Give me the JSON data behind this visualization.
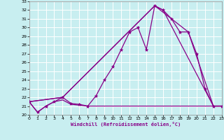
{
  "background_color": "#c8eef0",
  "line_color": "#880088",
  "grid_color": "#ffffff",
  "xlim": [
    0,
    23
  ],
  "ylim": [
    20,
    33
  ],
  "xticks": [
    0,
    1,
    2,
    3,
    4,
    5,
    6,
    7,
    8,
    9,
    10,
    11,
    12,
    13,
    14,
    15,
    16,
    17,
    18,
    19,
    20,
    21,
    22,
    23
  ],
  "yticks": [
    20,
    21,
    22,
    23,
    24,
    25,
    26,
    27,
    28,
    29,
    30,
    31,
    32,
    33
  ],
  "xlabel": "Windchill (Refroidissement éolien,°C)",
  "line1_x": [
    0,
    1,
    2,
    3,
    4,
    5,
    6,
    7,
    8,
    9,
    10,
    11,
    12,
    13,
    14,
    15,
    16,
    17,
    18,
    19,
    20,
    21,
    22,
    23
  ],
  "line1_y": [
    21.5,
    20.3,
    21.0,
    21.5,
    21.7,
    21.2,
    21.1,
    21.0,
    21.0,
    21.0,
    21.0,
    21.0,
    21.0,
    21.0,
    21.0,
    21.0,
    21.0,
    21.0,
    21.0,
    21.0,
    21.0,
    21.0,
    21.0,
    21.0
  ],
  "line2_x": [
    0,
    1,
    2,
    3,
    4,
    5,
    6,
    7,
    8,
    9,
    10,
    11,
    12,
    13,
    14,
    15,
    16,
    17,
    18,
    19,
    20,
    21,
    22,
    23
  ],
  "line2_y": [
    21.5,
    20.3,
    21.0,
    21.5,
    22.0,
    21.3,
    21.2,
    21.0,
    22.2,
    24.0,
    25.5,
    27.5,
    29.5,
    30.0,
    27.5,
    32.5,
    32.0,
    31.0,
    29.5,
    29.5,
    27.0,
    23.0,
    21.0,
    21.0
  ],
  "line3_x": [
    0,
    4,
    15,
    17,
    19,
    22,
    23
  ],
  "line3_y": [
    21.5,
    22.0,
    32.5,
    31.0,
    29.5,
    21.0,
    21.0
  ],
  "line4_x": [
    0,
    4,
    15,
    16,
    22,
    23
  ],
  "line4_y": [
    21.5,
    22.0,
    32.5,
    32.0,
    21.0,
    21.0
  ]
}
